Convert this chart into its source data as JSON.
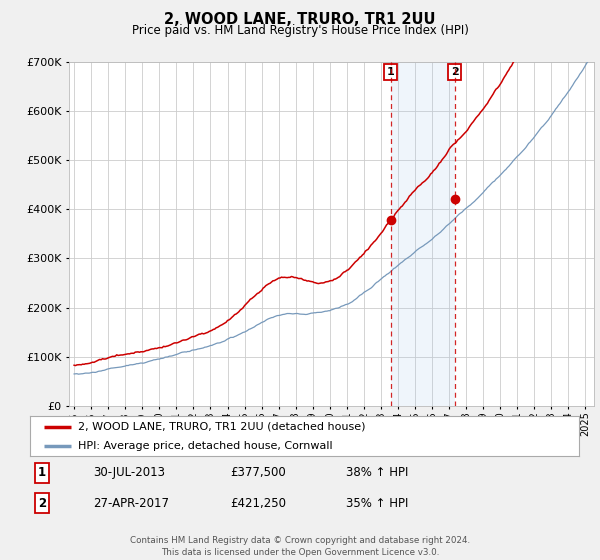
{
  "title": "2, WOOD LANE, TRURO, TR1 2UU",
  "subtitle": "Price paid vs. HM Land Registry's House Price Index (HPI)",
  "title_fontsize": 10.5,
  "subtitle_fontsize": 8.5,
  "background_color": "#f0f0f0",
  "plot_bg_color": "#ffffff",
  "grid_color": "#cccccc",
  "red_line_color": "#cc0000",
  "blue_line_color": "#7799bb",
  "marker1_date_x": 2013.58,
  "marker1_y": 377500,
  "marker2_date_x": 2017.33,
  "marker2_y": 421250,
  "vline1_x": 2013.58,
  "vline2_x": 2017.33,
  "shade_x1": 2013.58,
  "shade_x2": 2017.33,
  "legend1_label": "2, WOOD LANE, TRURO, TR1 2UU (detached house)",
  "legend2_label": "HPI: Average price, detached house, Cornwall",
  "table_row1": [
    "1",
    "30-JUL-2013",
    "£377,500",
    "38% ↑ HPI"
  ],
  "table_row2": [
    "2",
    "27-APR-2017",
    "£421,250",
    "35% ↑ HPI"
  ],
  "footer_line1": "Contains HM Land Registry data © Crown copyright and database right 2024.",
  "footer_line2": "This data is licensed under the Open Government Licence v3.0.",
  "ylim": [
    0,
    700000
  ],
  "xlim_start": 1994.7,
  "xlim_end": 2025.5
}
